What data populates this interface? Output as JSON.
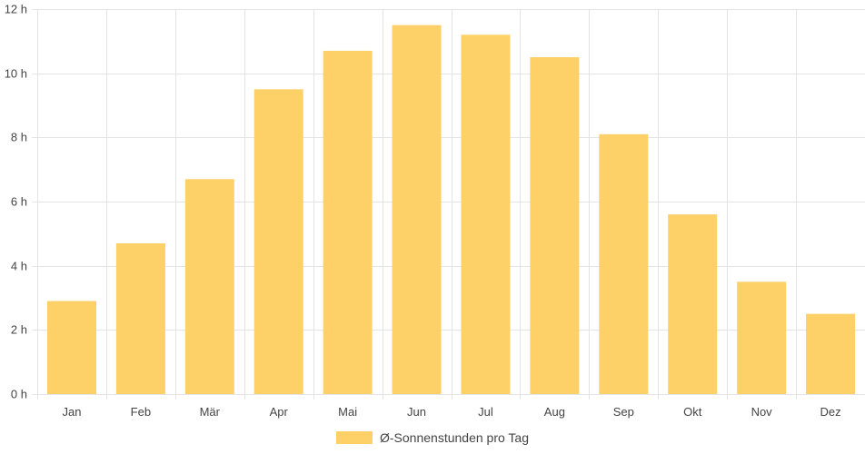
{
  "chart_data": {
    "type": "bar",
    "categories": [
      "Jan",
      "Feb",
      "Mär",
      "Apr",
      "Mai",
      "Jun",
      "Jul",
      "Aug",
      "Sep",
      "Okt",
      "Nov",
      "Dez"
    ],
    "series": [
      {
        "name": "Ø-Sonnenstunden pro Tag",
        "values": [
          2.9,
          4.7,
          6.7,
          9.5,
          10.7,
          11.5,
          11.2,
          10.5,
          8.1,
          5.6,
          3.5,
          2.5
        ],
        "color": "#fdd068"
      }
    ],
    "ylim": [
      0,
      12
    ],
    "yticks": [
      0,
      2,
      4,
      6,
      8,
      10,
      12
    ],
    "ytick_suffix": " h",
    "grid": true,
    "legend_position": "bottom",
    "colors": {
      "bar": "#fdd068",
      "grid": "#e4e4e4",
      "text": "#444444"
    }
  }
}
